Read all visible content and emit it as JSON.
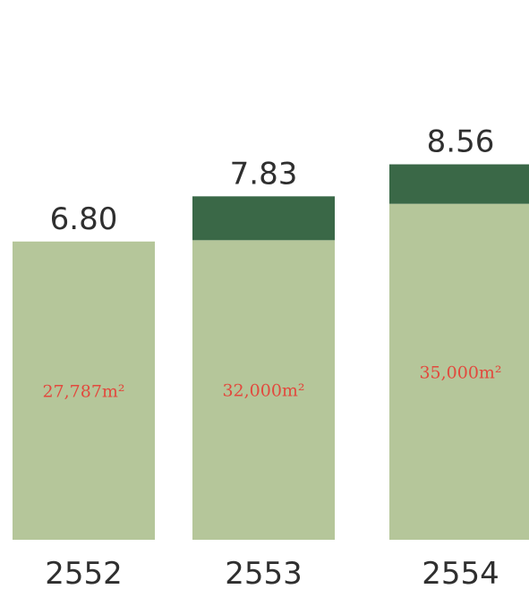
{
  "chart_data": {
    "type": "bar",
    "stacked": true,
    "categories": [
      "2552",
      "2553",
      "2554"
    ],
    "series": [
      {
        "color": "#b5c69a",
        "values": [
          6.8,
          6.83,
          7.66
        ]
      },
      {
        "color": "#3a6847",
        "values": [
          0.0,
          1.0,
          0.9
        ]
      }
    ],
    "totals": [
      6.8,
      7.83,
      8.56
    ],
    "total_labels": [
      "6.80",
      "7.83",
      "8.56"
    ],
    "area_labels": [
      "27,787m²",
      "32,000m²",
      "35,000m²"
    ],
    "area_label_color": "#e2493d",
    "ylim": [
      0,
      8.56
    ],
    "grid": false,
    "legend": "none",
    "title": "",
    "xlabel": "",
    "ylabel": ""
  }
}
